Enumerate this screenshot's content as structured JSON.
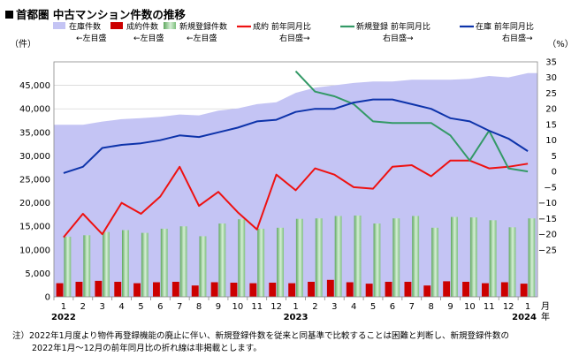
{
  "page": {
    "title": "首都圏 中古マンション件数の推移",
    "note_line1": "注）2022年1月度より物件再登録機能の廃止に伴い、新規登録件数を従来と同基準で比較することは困難と判断し、新規登録件数の",
    "note_line2": "2022年1月～12月の前年同月比の折れ線は非掲載とします。"
  },
  "chart_data": {
    "type": "bar",
    "categories": [
      "1",
      "2",
      "3",
      "4",
      "5",
      "6",
      "7",
      "8",
      "9",
      "10",
      "11",
      "12",
      "1",
      "2",
      "3",
      "4",
      "5",
      "6",
      "7",
      "8",
      "9",
      "10",
      "11",
      "12",
      "1"
    ],
    "years": [
      {
        "label": "2022",
        "index": 0
      },
      {
        "label": "2023",
        "index": 12
      },
      {
        "label": "2024",
        "index": 24
      }
    ],
    "x_unit_label": "月",
    "x_year_suffix": "年",
    "left_axis": {
      "label": "（件）",
      "min": 0,
      "max": 50000,
      "step": 5000,
      "ticks": [
        "0",
        "5,000",
        "10,000",
        "15,000",
        "20,000",
        "25,000",
        "30,000",
        "35,000",
        "40,000",
        "45,000"
      ]
    },
    "right_axis": {
      "label": "（%）",
      "min": -40,
      "max": 35,
      "step": 5,
      "ticks": [
        "35",
        "30",
        "25",
        "20",
        "15",
        "10",
        "5",
        "0",
        "−5",
        "−10",
        "−15",
        "−20",
        "−25"
      ]
    },
    "colors": {
      "stock_area": "#c4c4f4",
      "contract_bar": "#cc0000",
      "new_listing_bar": "#9ccf9c",
      "contract_yoy": "#ee1111",
      "new_listing_yoy": "#339966",
      "stock_yoy": "#0d33aa",
      "zero_line": "#000000"
    },
    "legend": [
      {
        "key": "stock_area",
        "kind": "area",
        "name": "在庫件数",
        "sub": "←左目盛"
      },
      {
        "key": "contract_bar",
        "kind": "bar",
        "name": "成約件数",
        "sub": "←左目盛"
      },
      {
        "key": "new_listing_bar",
        "kind": "bar",
        "name": "新規登録件数",
        "sub": "←左目盛"
      },
      {
        "key": "contract_yoy",
        "kind": "line",
        "name": "成約 前年同月比",
        "sub": "右目盛→"
      },
      {
        "key": "new_listing_yoy",
        "kind": "line",
        "name": "新規登録 前年同月比",
        "sub": "右目盛→"
      },
      {
        "key": "stock_yoy",
        "kind": "line",
        "name": "在庫 前年同月比",
        "sub": "右目盛→"
      }
    ],
    "series": [
      {
        "name": "在庫件数",
        "key": "stock_area",
        "axis": "left",
        "values": [
          36600,
          36600,
          37300,
          37800,
          38000,
          38300,
          38800,
          38600,
          39600,
          40100,
          41000,
          41400,
          43400,
          44500,
          45000,
          45500,
          45800,
          45800,
          46200,
          46200,
          46200,
          46400,
          47000,
          46700,
          47600
        ]
      },
      {
        "name": "成約件数",
        "key": "contract_bar",
        "axis": "left",
        "values": [
          2900,
          3200,
          3400,
          3200,
          2900,
          3100,
          3200,
          2400,
          3100,
          3000,
          2900,
          3000,
          2900,
          3200,
          3600,
          3100,
          2800,
          3200,
          3200,
          2400,
          3300,
          3200,
          2900,
          3100,
          2800
        ]
      },
      {
        "name": "新規登録件数",
        "key": "new_listing_bar",
        "axis": "left",
        "values": [
          12800,
          13100,
          13800,
          14200,
          13600,
          14500,
          15000,
          12900,
          15600,
          16500,
          14500,
          14700,
          16600,
          16700,
          17200,
          17300,
          15600,
          16700,
          17200,
          14700,
          17000,
          16900,
          16300,
          14800,
          16700
        ]
      },
      {
        "name": "成約 前年同月比",
        "key": "contract_yoy",
        "axis": "right",
        "values": [
          -21,
          -13.5,
          -20,
          -10,
          -13.5,
          -8,
          1.5,
          -11,
          -6.5,
          -13,
          -18.5,
          -1,
          -6,
          1,
          -1,
          -5,
          -5.5,
          1.5,
          2,
          -1.5,
          3.5,
          3.5,
          1,
          1.5,
          2.5
        ]
      },
      {
        "name": "新規登録 前年同月比",
        "key": "new_listing_yoy",
        "axis": "right",
        "values": [
          null,
          null,
          null,
          null,
          null,
          null,
          null,
          null,
          null,
          null,
          null,
          null,
          32,
          25.5,
          24,
          21.5,
          16,
          15.5,
          15.5,
          15.5,
          11.5,
          3.5,
          13,
          1,
          0
        ]
      },
      {
        "name": "在庫 前年同月比",
        "key": "stock_yoy",
        "axis": "right",
        "values": [
          -0.5,
          1.5,
          7.5,
          8.5,
          9,
          10,
          11.5,
          11,
          12.5,
          14,
          16,
          16.5,
          19,
          20,
          20,
          22,
          23,
          23,
          21.5,
          20,
          17,
          16,
          13,
          10.5,
          6.5
        ]
      }
    ]
  }
}
